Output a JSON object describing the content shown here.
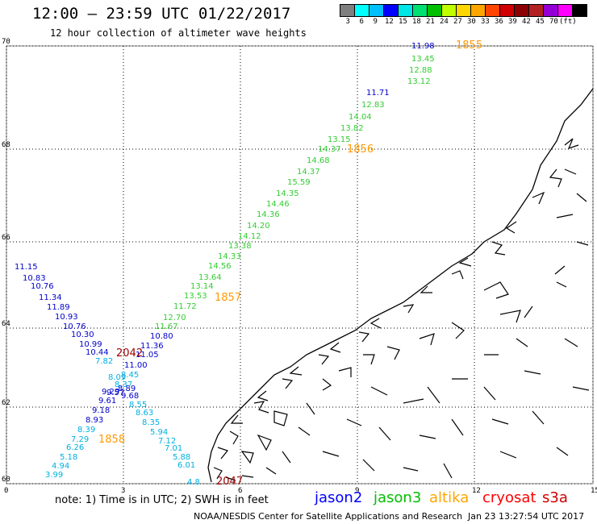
{
  "header": {
    "title": "12:00 – 23:59 UTC 01/22/2017",
    "subtitle": "12 hour collection of altimeter wave heights"
  },
  "legend": {
    "colors": [
      "#7f7f7f",
      "#00ffff",
      "#00bfff",
      "#0000ff",
      "#00e5e5",
      "#00e070",
      "#00c000",
      "#bfff00",
      "#ffd700",
      "#ffa500",
      "#ff4500",
      "#d00000",
      "#8b0000",
      "#b22222",
      "#9400d3",
      "#ff00ff",
      "#000000"
    ],
    "labels": [
      "3",
      "6",
      "9",
      "12",
      "15",
      "18",
      "21",
      "24",
      "27",
      "30",
      "33",
      "36",
      "39",
      "42",
      "45",
      "70",
      "(ft)"
    ]
  },
  "axes": {
    "x_ticks": [
      "0",
      "3",
      "6",
      "9",
      "12",
      "15"
    ],
    "y_ticks": [
      "60",
      "62",
      "64",
      "66",
      "68",
      "70"
    ]
  },
  "labels": {
    "jason2_values": [
      "11.98",
      "11.71",
      "11.15",
      "10.83",
      "10.76",
      "11.34",
      "11.89",
      "10.93",
      "10.76",
      "10.30",
      "10.99",
      "10.44",
      "11.00",
      "9.29",
      "8.89",
      "9.57",
      "9.61",
      "9.18",
      "8.93",
      "11.36",
      "10.80",
      "11.05",
      "9.68"
    ],
    "jason3_values": [
      "13.45",
      "12.88",
      "13.12",
      "12.83",
      "14.04",
      "13.82",
      "13.15",
      "14.37",
      "14.68",
      "14.37",
      "15.59",
      "14.35",
      "14.46",
      "14.36",
      "14.20",
      "14.12",
      "13.38",
      "14.33",
      "14.56",
      "13.64",
      "13.14",
      "13.53",
      "11.72",
      "12.70",
      "11.67"
    ],
    "altika_values": [
      "7.82",
      "8.09",
      "8.37",
      "8.45",
      "8.55",
      "8.63",
      "8.35",
      "5.94",
      "7.12",
      "7.01",
      "5.88",
      "6.01",
      "4.8",
      "8.39",
      "7.29",
      "6.26",
      "5.18",
      "4.94",
      "3.99"
    ],
    "times_orange": [
      "1855",
      "1856",
      "1857",
      "1858"
    ],
    "times_red": [
      "2042",
      "2047"
    ]
  },
  "footer": {
    "note": "note: 1) Time is in UTC; 2) SWH is in feet",
    "satellites": [
      {
        "name": "jason2",
        "color": "#0000ff"
      },
      {
        "name": "jason3",
        "color": "#00c000"
      },
      {
        "name": "altika",
        "color": "#ffa500"
      },
      {
        "name": "cryosat",
        "color": "#ff0000"
      },
      {
        "name": "s3a",
        "color": "#d00000"
      }
    ],
    "credit": "NOAA/NESDIS Center for Satellite Applications and Research",
    "stamp": "Jan 23 13:27:54 UTC 2017"
  }
}
